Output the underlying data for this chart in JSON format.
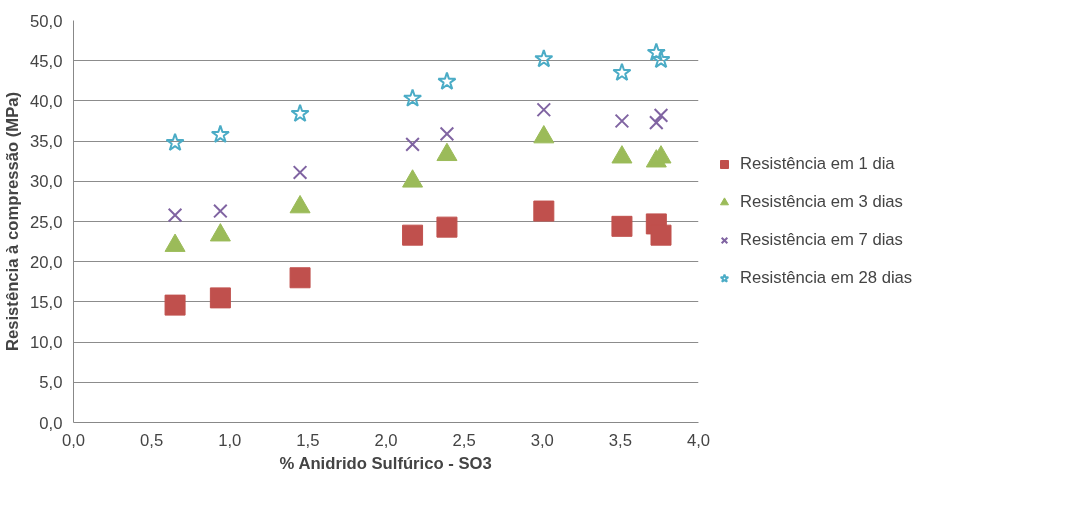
{
  "chart_data": {
    "type": "scatter",
    "xlabel": "% Anidrido Sulfúrico - SO3",
    "ylabel": "Resistência à compressão (MPa)",
    "x": [
      0.65,
      0.94,
      1.45,
      2.17,
      2.39,
      3.01,
      3.51,
      3.73,
      3.76
    ],
    "series": [
      {
        "name": "Resistência em 1 dia",
        "color": "#c0504d",
        "marker": "square",
        "values": [
          14.6,
          15.5,
          18.0,
          23.3,
          24.3,
          26.3,
          24.4,
          24.7,
          23.3
        ]
      },
      {
        "name": "Resistência em 3 dias",
        "color": "#9bbb59",
        "marker": "triangle",
        "values": [
          22.0,
          23.3,
          26.8,
          30.0,
          33.3,
          35.5,
          33.0,
          32.5,
          33.0
        ]
      },
      {
        "name": "Resistência em 7 dias",
        "color": "#8064a2",
        "marker": "cross",
        "values": [
          25.8,
          26.3,
          31.1,
          34.6,
          35.9,
          38.9,
          37.5,
          37.3,
          38.2
        ]
      },
      {
        "name": "Resistência em 28 dias",
        "color": "#4bacc6",
        "marker": "star",
        "values": [
          34.8,
          35.8,
          38.4,
          40.3,
          42.4,
          45.2,
          43.5,
          46.0,
          45.1
        ]
      }
    ],
    "xlim": [
      0,
      4
    ],
    "ylim": [
      0,
      50
    ],
    "xticks": [
      {
        "value": 0,
        "label": "0,0"
      },
      {
        "value": 0.5,
        "label": "0,5"
      },
      {
        "value": 1,
        "label": "1,0"
      },
      {
        "value": 1.5,
        "label": "1,5"
      },
      {
        "value": 2,
        "label": "2,0"
      },
      {
        "value": 2.5,
        "label": "2,5"
      },
      {
        "value": 3,
        "label": "3,0"
      },
      {
        "value": 3.5,
        "label": "3,5"
      },
      {
        "value": 4,
        "label": "4,0"
      }
    ],
    "yticks": [
      {
        "value": 0,
        "label": "0,0"
      },
      {
        "value": 5,
        "label": "5,0"
      },
      {
        "value": 10,
        "label": "10,0"
      },
      {
        "value": 15,
        "label": "15,0"
      },
      {
        "value": 20,
        "label": "20,0"
      },
      {
        "value": 25,
        "label": "25,0"
      },
      {
        "value": 30,
        "label": "30,0"
      },
      {
        "value": 35,
        "label": "35,0"
      },
      {
        "value": 40,
        "label": "40,0"
      },
      {
        "value": 45,
        "label": "45,0"
      },
      {
        "value": 50,
        "label": "50,0"
      }
    ],
    "grid": "y",
    "legend": "right"
  }
}
